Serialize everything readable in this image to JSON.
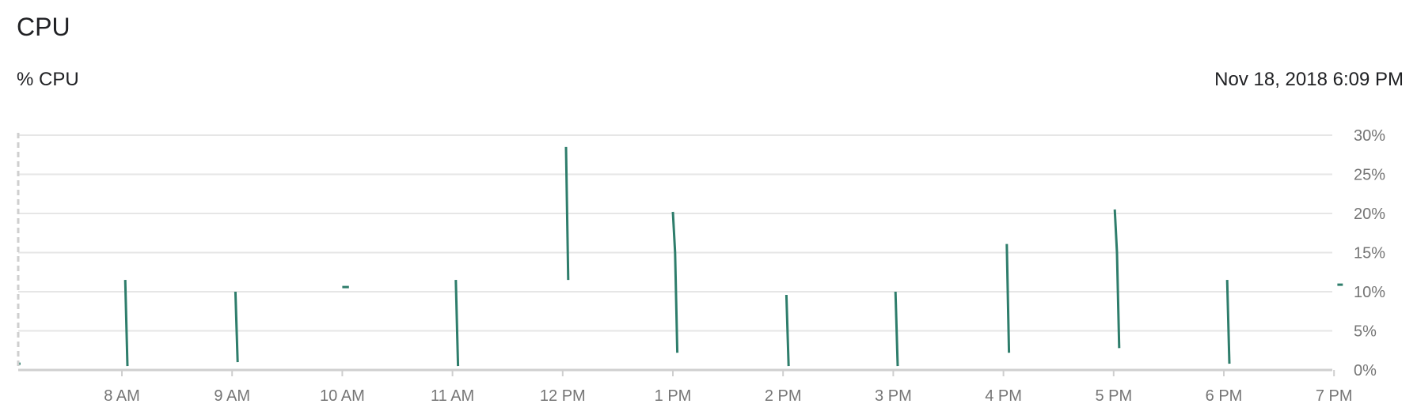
{
  "header": {
    "title": "CPU",
    "metric": "% CPU",
    "timestamp": "Nov 18, 2018 6:09 PM"
  },
  "colors": {
    "series": "#2e7d6b",
    "grid": "#e6e6e6",
    "axis": "#cfcfcf",
    "tick_text": "#757575"
  },
  "chart_data": {
    "type": "line",
    "title": "CPU",
    "ylabel": "% CPU",
    "xlabel": "",
    "ylim": [
      0,
      30
    ],
    "y_ticks": [
      "0%",
      "5%",
      "10%",
      "15%",
      "20%",
      "25%",
      "30%"
    ],
    "x_ticks": [
      "8 AM",
      "9 AM",
      "10 AM",
      "11 AM",
      "12 PM",
      "1 PM",
      "2 PM",
      "3 PM",
      "4 PM",
      "5 PM",
      "6 PM",
      "7 PM"
    ],
    "x_range_hours": [
      7.07,
      19.0
    ],
    "grid": true,
    "legend": "none",
    "series": [
      {
        "segments": [
          [
            [
              7.07,
              0.8
            ],
            [
              7.08,
              0.8
            ]
          ],
          [
            [
              8.03,
              11.5
            ],
            [
              8.05,
              0.5
            ]
          ],
          [
            [
              9.03,
              10.0
            ],
            [
              9.05,
              1.0
            ]
          ],
          [
            [
              10.0,
              10.6
            ],
            [
              10.06,
              10.6
            ]
          ],
          [
            [
              11.03,
              11.5
            ],
            [
              11.05,
              0.5
            ]
          ],
          [
            [
              12.03,
              28.5
            ],
            [
              12.05,
              11.5
            ]
          ],
          [
            [
              13.0,
              20.2
            ],
            [
              13.02,
              15.0
            ],
            [
              13.04,
              2.2
            ]
          ],
          [
            [
              14.03,
              9.6
            ],
            [
              14.05,
              0.5
            ]
          ],
          [
            [
              15.02,
              10.0
            ],
            [
              15.04,
              0.5
            ]
          ],
          [
            [
              16.03,
              16.1
            ],
            [
              16.05,
              2.2
            ]
          ],
          [
            [
              17.01,
              20.5
            ],
            [
              17.03,
              15.0
            ],
            [
              17.05,
              2.8
            ]
          ],
          [
            [
              18.03,
              11.5
            ],
            [
              18.05,
              0.8
            ]
          ],
          [
            [
              19.03,
              10.9
            ],
            [
              19.08,
              10.9
            ]
          ]
        ]
      }
    ]
  }
}
